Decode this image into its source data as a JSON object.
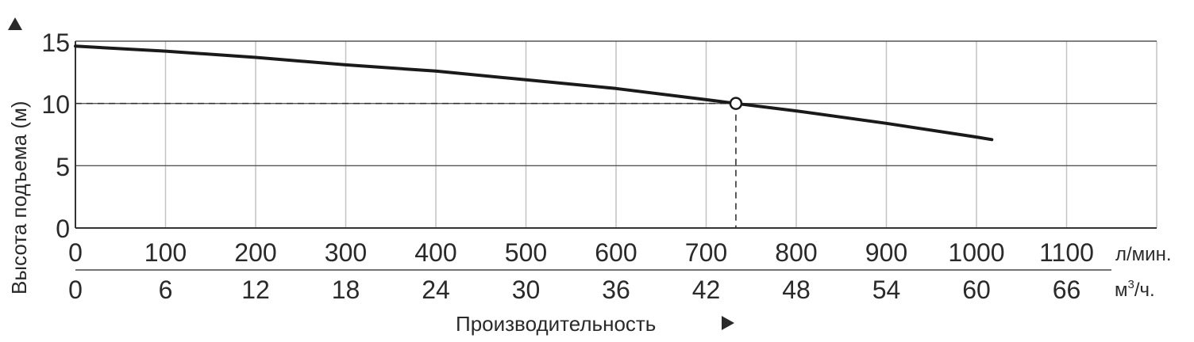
{
  "chart_data": {
    "type": "line",
    "ylabel": "Высота подъема (м)",
    "xlabel": "Производительность",
    "ylim": [
      0,
      15
    ],
    "yticks": [
      "0",
      "5",
      "10",
      "15"
    ],
    "xlim": [
      0,
      1200
    ],
    "x_lmin_ticks": [
      "0",
      "100",
      "200",
      "300",
      "400",
      "500",
      "600",
      "700",
      "800",
      "900",
      "1000",
      "1100"
    ],
    "x_lmin_unit": "л/мин.",
    "x_m3h_ticks": [
      "0",
      "6",
      "12",
      "18",
      "24",
      "30",
      "36",
      "42",
      "48",
      "54",
      "60",
      "66"
    ],
    "x_m3h_unit_base": "м",
    "x_m3h_unit_sup": "3",
    "x_m3h_unit_tail": "/ч.",
    "grid": true,
    "series": [
      {
        "x": [
          0,
          100,
          200,
          300,
          400,
          500,
          600,
          700,
          733,
          800,
          900,
          1000,
          1017
        ],
        "y": [
          14.6,
          14.2,
          13.7,
          13.1,
          12.6,
          11.9,
          11.2,
          10.3,
          10.0,
          9.4,
          8.4,
          7.3,
          7.1
        ]
      }
    ],
    "operating_point": {
      "x": 733,
      "y": 10
    }
  }
}
